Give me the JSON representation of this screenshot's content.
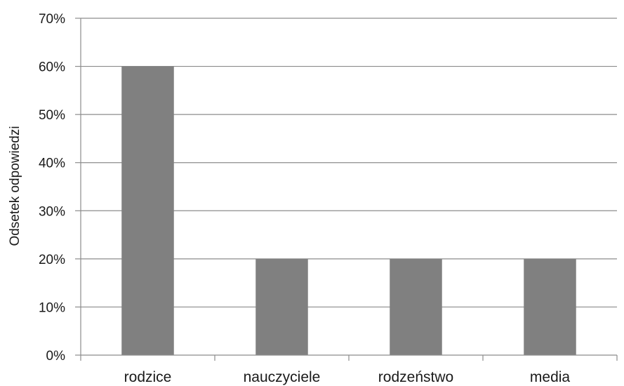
{
  "chart_data": {
    "type": "bar",
    "categories": [
      "rodzice",
      "nauczyciele",
      "rodzeństwo",
      "media"
    ],
    "values": [
      60,
      20,
      20,
      20
    ],
    "ylabel": "Odsetek odpowiedzi",
    "xlabel": "",
    "title": "",
    "ylim": [
      0,
      70
    ],
    "ytick_step": 10,
    "ytick_suffix": "%",
    "grid": true,
    "legend": "none",
    "bar_color": "#808080",
    "grid_color": "#8c8c8c"
  }
}
